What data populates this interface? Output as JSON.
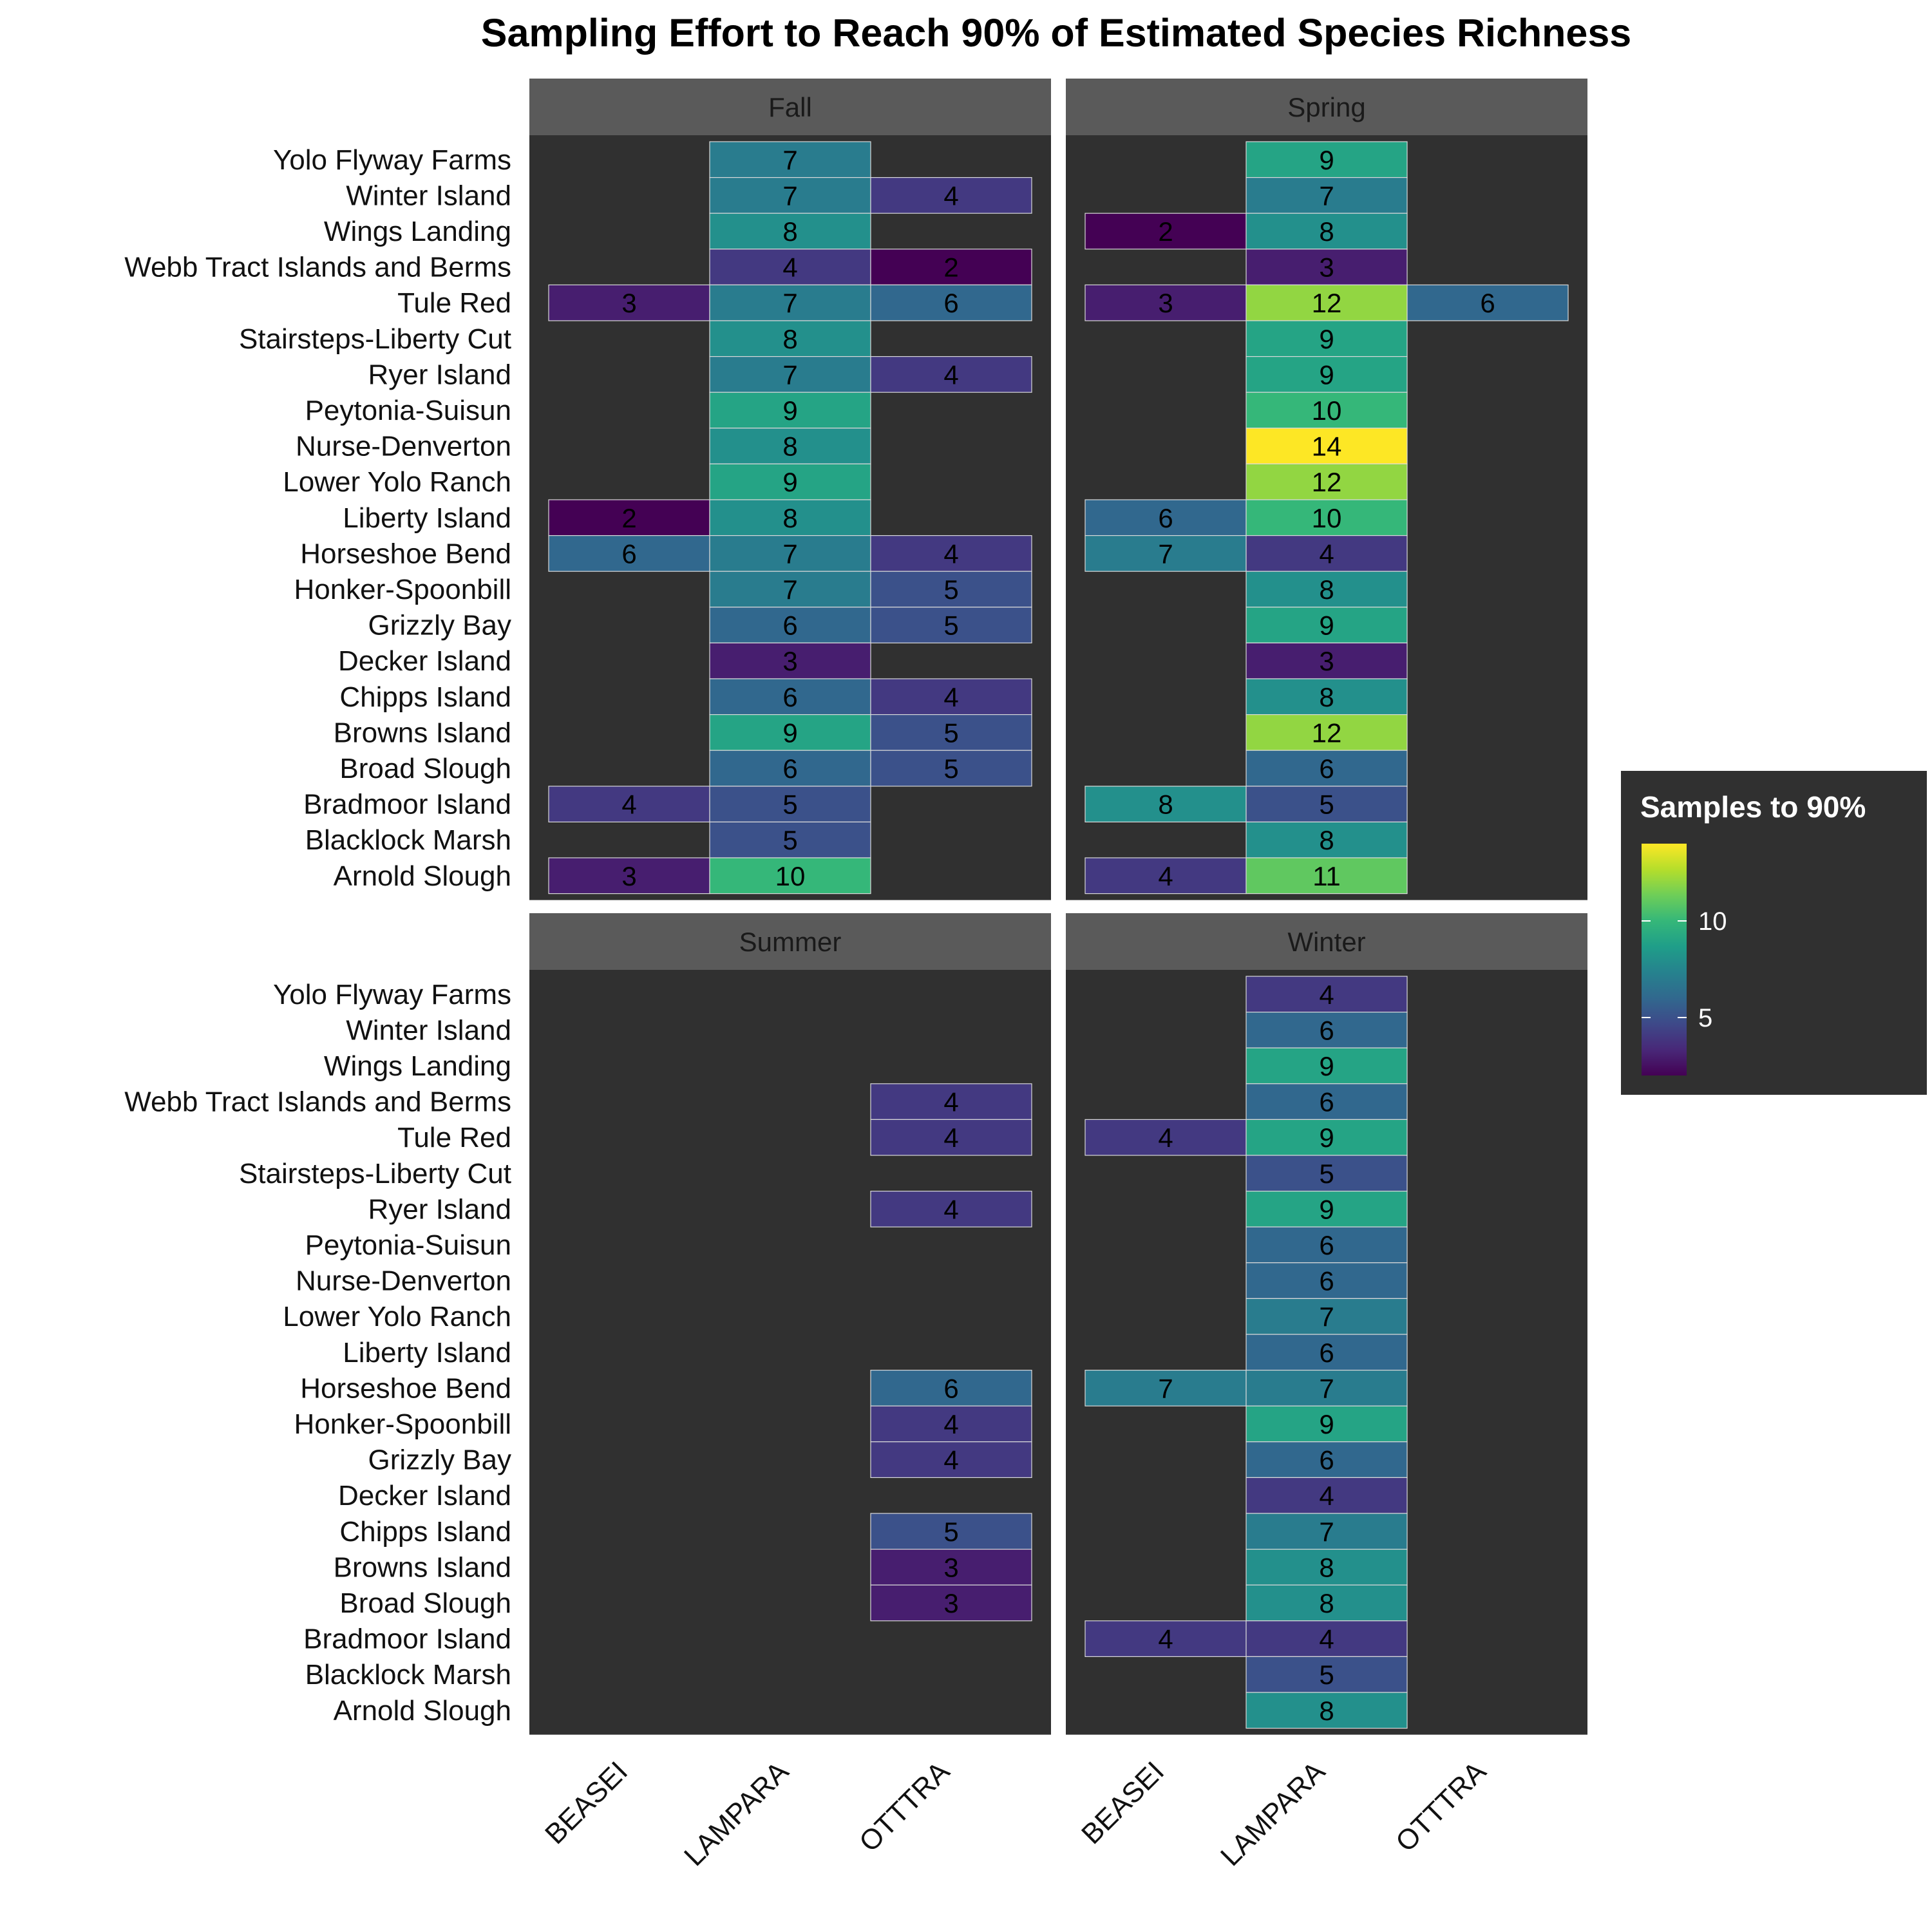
{
  "chart_data": {
    "type": "heatmap",
    "title": "Sampling Effort to Reach 90% of Estimated Species Richness",
    "x_categories": [
      "BEASEI",
      "LAMPARA",
      "OTTTRA"
    ],
    "y_categories": [
      "Yolo Flyway Farms",
      "Winter Island",
      "Wings Landing",
      "Webb Tract Islands and Berms",
      "Tule Red",
      "Stairsteps-Liberty Cut",
      "Ryer Island",
      "Peytonia-Suisun",
      "Nurse-Denverton",
      "Lower Yolo Ranch",
      "Liberty Island",
      "Horseshoe Bend",
      "Honker-Spoonbill",
      "Grizzly Bay",
      "Decker Island",
      "Chipps Island",
      "Browns Island",
      "Broad Slough",
      "Bradmoor Island",
      "Blacklock Marsh",
      "Arnold Slough"
    ],
    "legend": {
      "title": "Samples to 90%",
      "ticks": [
        5,
        10
      ],
      "range": [
        2,
        14
      ],
      "colormap": "viridis",
      "position": "right"
    },
    "panel_background": "#303030",
    "strip_background": "#5a5a5a",
    "panels": [
      {
        "name": "Fall",
        "values": [
          [
            null,
            7,
            null
          ],
          [
            null,
            7,
            4
          ],
          [
            null,
            8,
            null
          ],
          [
            null,
            4,
            2
          ],
          [
            3,
            7,
            6
          ],
          [
            null,
            8,
            null
          ],
          [
            null,
            7,
            4
          ],
          [
            null,
            9,
            null
          ],
          [
            null,
            8,
            null
          ],
          [
            null,
            9,
            null
          ],
          [
            2,
            8,
            null
          ],
          [
            6,
            7,
            4
          ],
          [
            null,
            7,
            5
          ],
          [
            null,
            6,
            5
          ],
          [
            null,
            3,
            null
          ],
          [
            null,
            6,
            4
          ],
          [
            null,
            9,
            5
          ],
          [
            null,
            6,
            5
          ],
          [
            4,
            5,
            null
          ],
          [
            null,
            5,
            null
          ],
          [
            3,
            10,
            null
          ]
        ]
      },
      {
        "name": "Spring",
        "values": [
          [
            null,
            9,
            null
          ],
          [
            null,
            7,
            null
          ],
          [
            2,
            8,
            null
          ],
          [
            null,
            3,
            null
          ],
          [
            3,
            12,
            6
          ],
          [
            null,
            9,
            null
          ],
          [
            null,
            9,
            null
          ],
          [
            null,
            10,
            null
          ],
          [
            null,
            14,
            null
          ],
          [
            null,
            12,
            null
          ],
          [
            6,
            10,
            null
          ],
          [
            7,
            4,
            null
          ],
          [
            null,
            8,
            null
          ],
          [
            null,
            9,
            null
          ],
          [
            null,
            3,
            null
          ],
          [
            null,
            8,
            null
          ],
          [
            null,
            12,
            null
          ],
          [
            null,
            6,
            null
          ],
          [
            8,
            5,
            null
          ],
          [
            null,
            8,
            null
          ],
          [
            4,
            11,
            null
          ]
        ]
      },
      {
        "name": "Summer",
        "values": [
          [
            null,
            null,
            null
          ],
          [
            null,
            null,
            null
          ],
          [
            null,
            null,
            null
          ],
          [
            null,
            null,
            4
          ],
          [
            null,
            null,
            4
          ],
          [
            null,
            null,
            null
          ],
          [
            null,
            null,
            4
          ],
          [
            null,
            null,
            null
          ],
          [
            null,
            null,
            null
          ],
          [
            null,
            null,
            null
          ],
          [
            null,
            null,
            null
          ],
          [
            null,
            null,
            6
          ],
          [
            null,
            null,
            4
          ],
          [
            null,
            null,
            4
          ],
          [
            null,
            null,
            null
          ],
          [
            null,
            null,
            5
          ],
          [
            null,
            null,
            3
          ],
          [
            null,
            null,
            3
          ],
          [
            null,
            null,
            null
          ],
          [
            null,
            null,
            null
          ],
          [
            null,
            null,
            null
          ]
        ]
      },
      {
        "name": "Winter",
        "values": [
          [
            null,
            4,
            null
          ],
          [
            null,
            6,
            null
          ],
          [
            null,
            9,
            null
          ],
          [
            null,
            6,
            null
          ],
          [
            4,
            9,
            null
          ],
          [
            null,
            5,
            null
          ],
          [
            null,
            9,
            null
          ],
          [
            null,
            6,
            null
          ],
          [
            null,
            6,
            null
          ],
          [
            null,
            7,
            null
          ],
          [
            null,
            6,
            null
          ],
          [
            7,
            7,
            null
          ],
          [
            null,
            9,
            null
          ],
          [
            null,
            6,
            null
          ],
          [
            null,
            4,
            null
          ],
          [
            null,
            7,
            null
          ],
          [
            null,
            8,
            null
          ],
          [
            null,
            8,
            null
          ],
          [
            4,
            4,
            null
          ],
          [
            null,
            5,
            null
          ],
          [
            null,
            8,
            null
          ]
        ]
      }
    ]
  }
}
